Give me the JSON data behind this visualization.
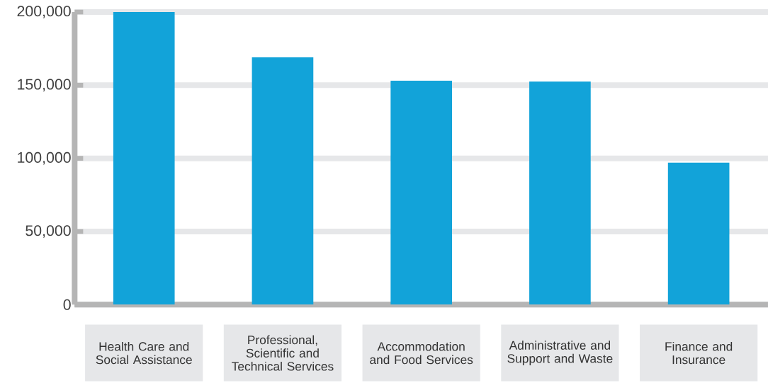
{
  "chart_data": {
    "type": "bar",
    "categories": [
      "Health Care and Social Assistance",
      "Professional, Scientific and Technical Services",
      "Accommodation and Food Services",
      "Administrative and Support and Waste",
      "Finance and Insurance"
    ],
    "values": [
      200000,
      169000,
      153000,
      152500,
      97000
    ],
    "color": "#12a3d9",
    "ylim": [
      0,
      200000
    ],
    "yticks": [
      {
        "value": 0,
        "label": "0"
      },
      {
        "value": 50000,
        "label": "50,000"
      },
      {
        "value": 100000,
        "label": "100,000"
      },
      {
        "value": 150000,
        "label": "150,000"
      },
      {
        "value": 200000,
        "label": "200,000"
      }
    ],
    "grid": "y"
  }
}
